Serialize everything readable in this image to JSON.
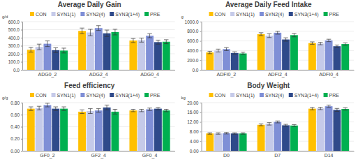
{
  "chart_data": [
    {
      "type": "bar",
      "title": "Average Daily Gain",
      "y_label": "g/d",
      "grid": true,
      "legend": "top",
      "categories": [
        "ADG0_2",
        "ADG2_4",
        "ADG0_4"
      ],
      "ylim": [
        0,
        600
      ],
      "yticks": [
        {
          "value": 0,
          "label": "0.0"
        },
        {
          "value": 100,
          "label": "100.0"
        },
        {
          "value": 200,
          "label": "200.0"
        },
        {
          "value": 300,
          "label": "300.0"
        },
        {
          "value": 400,
          "label": "400.0"
        },
        {
          "value": 500,
          "label": "500.0"
        },
        {
          "value": 600,
          "label": "600.0"
        }
      ],
      "series": [
        {
          "name": "CON",
          "color": "#ffc000",
          "values": [
            250,
            485,
            365
          ],
          "errors": [
            30,
            35,
            25
          ]
        },
        {
          "name": "SYN1(1)",
          "color": "#c5cae9",
          "values": [
            285,
            465,
            370
          ],
          "errors": [
            35,
            40,
            25
          ]
        },
        {
          "name": "SYN2(4)",
          "color": "#7f8fd6",
          "values": [
            325,
            520,
            425
          ],
          "errors": [
            35,
            30,
            25
          ]
        },
        {
          "name": "SYN3(1+4)",
          "color": "#2f4a8a",
          "values": [
            245,
            455,
            345
          ],
          "errors": [
            30,
            40,
            25
          ]
        },
        {
          "name": "PRE",
          "color": "#00b050",
          "values": [
            240,
            470,
            350
          ],
          "errors": [
            30,
            35,
            25
          ]
        }
      ]
    },
    {
      "type": "bar",
      "title": "Average Daily Feed Intake",
      "y_label": "g",
      "grid": true,
      "legend": "top",
      "categories": [
        "ADFI0_2",
        "ADFI2_4",
        "ADFI0_4"
      ],
      "ylim": [
        0,
        1000
      ],
      "yticks": [
        {
          "value": 0,
          "label": "0.0"
        },
        {
          "value": 200,
          "label": "200.0"
        },
        {
          "value": 400,
          "label": "400.0"
        },
        {
          "value": 600,
          "label": "600.0"
        },
        {
          "value": 800,
          "label": "800.0"
        },
        {
          "value": 1000,
          "label": "1000.0"
        }
      ],
      "series": [
        {
          "name": "CON",
          "color": "#ffc000",
          "values": [
            360,
            740,
            555
          ],
          "errors": [
            25,
            30,
            25
          ]
        },
        {
          "name": "SYN1(1)",
          "color": "#c5cae9",
          "values": [
            400,
            710,
            545
          ],
          "errors": [
            30,
            40,
            25
          ]
        },
        {
          "name": "SYN2(4)",
          "color": "#7f8fd6",
          "values": [
            430,
            770,
            610
          ],
          "errors": [
            30,
            30,
            25
          ]
        },
        {
          "name": "SYN3(1+4)",
          "color": "#2f4a8a",
          "values": [
            350,
            630,
            490
          ],
          "errors": [
            25,
            35,
            25
          ]
        },
        {
          "name": "PRE",
          "color": "#00b050",
          "values": [
            340,
            720,
            535
          ],
          "errors": [
            25,
            35,
            25
          ]
        }
      ]
    },
    {
      "type": "bar",
      "title": "Feed efficiency",
      "y_label": "g/g",
      "grid": true,
      "legend": "top",
      "categories": [
        "GF0_2",
        "GF2_4",
        "GF0_4"
      ],
      "ylim": [
        0,
        0.8
      ],
      "yticks": [
        {
          "value": 0,
          "label": "0.00"
        },
        {
          "value": 0.2,
          "label": "0.20"
        },
        {
          "value": 0.4,
          "label": "0.40"
        },
        {
          "value": 0.6,
          "label": "0.60"
        },
        {
          "value": 0.8,
          "label": "0.80"
        }
      ],
      "series": [
        {
          "name": "CON",
          "color": "#ffc000",
          "values": [
            0.7,
            0.65,
            0.67
          ],
          "errors": [
            0.03,
            0.03,
            0.02
          ]
        },
        {
          "name": "SYN1(1)",
          "color": "#c5cae9",
          "values": [
            0.71,
            0.66,
            0.67
          ],
          "errors": [
            0.03,
            0.04,
            0.02
          ]
        },
        {
          "name": "SYN2(4)",
          "color": "#7f8fd6",
          "values": [
            0.76,
            0.67,
            0.69
          ],
          "errors": [
            0.03,
            0.03,
            0.02
          ]
        },
        {
          "name": "SYN3(1+4)",
          "color": "#2f4a8a",
          "values": [
            0.7,
            0.72,
            0.7
          ],
          "errors": [
            0.03,
            0.04,
            0.02
          ]
        },
        {
          "name": "PRE",
          "color": "#00b050",
          "values": [
            0.7,
            0.65,
            0.67
          ],
          "errors": [
            0.03,
            0.04,
            0.02
          ]
        }
      ]
    },
    {
      "type": "bar",
      "title": "Body Weight",
      "y_label": "kg",
      "grid": true,
      "legend": "top",
      "categories": [
        "D0",
        "D7",
        "D14"
      ],
      "ylim": [
        0,
        20
      ],
      "yticks": [
        {
          "value": 0,
          "label": "0.00"
        },
        {
          "value": 4,
          "label": "4.00"
        },
        {
          "value": 8,
          "label": "8.00"
        },
        {
          "value": 12,
          "label": "12.00"
        },
        {
          "value": 16,
          "label": "16.00"
        },
        {
          "value": 20,
          "label": "20.00"
        }
      ],
      "series": [
        {
          "name": "CON",
          "color": "#ffc000",
          "values": [
            7.2,
            10.8,
            17.5
          ],
          "errors": [
            0.3,
            0.4,
            0.5
          ]
        },
        {
          "name": "SYN1(1)",
          "color": "#c5cae9",
          "values": [
            7.2,
            11.2,
            17.6
          ],
          "errors": [
            0.3,
            0.5,
            0.5
          ]
        },
        {
          "name": "SYN2(4)",
          "color": "#7f8fd6",
          "values": [
            7.3,
            12.0,
            18.5
          ],
          "errors": [
            0.3,
            0.4,
            0.5
          ]
        },
        {
          "name": "SYN3(1+4)",
          "color": "#2f4a8a",
          "values": [
            7.2,
            10.6,
            17.0
          ],
          "errors": [
            0.3,
            0.4,
            0.6
          ]
        },
        {
          "name": "PRE",
          "color": "#00b050",
          "values": [
            7.2,
            10.5,
            17.4
          ],
          "errors": [
            0.3,
            0.4,
            0.5
          ]
        }
      ]
    }
  ]
}
